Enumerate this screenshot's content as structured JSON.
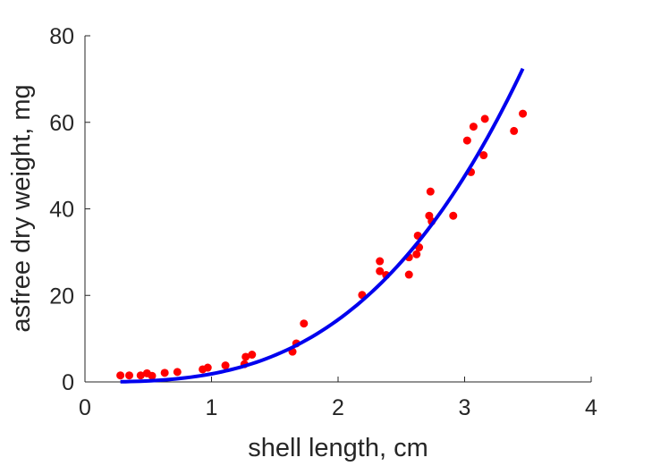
{
  "chart_data": {
    "type": "scatter",
    "title": "",
    "xlabel": "shell length, cm",
    "ylabel": "asfree dry weight, mg",
    "xlim": [
      0,
      4
    ],
    "ylim": [
      0,
      80
    ],
    "xticks": [
      "0",
      "1",
      "2",
      "3",
      "4"
    ],
    "yticks": [
      "0",
      "20",
      "40",
      "60",
      "80"
    ],
    "grid": false,
    "series": [
      {
        "kind": "scatter",
        "color": "#ff0000",
        "points": [
          [
            0.28,
            1.5
          ],
          [
            0.35,
            1.5
          ],
          [
            0.44,
            1.5
          ],
          [
            0.49,
            2.0
          ],
          [
            0.53,
            1.4
          ],
          [
            0.63,
            2.1
          ],
          [
            0.73,
            2.3
          ],
          [
            0.93,
            2.9
          ],
          [
            0.97,
            3.3
          ],
          [
            1.11,
            3.8
          ],
          [
            1.26,
            4.1
          ],
          [
            1.27,
            5.8
          ],
          [
            1.32,
            6.3
          ],
          [
            1.64,
            7.0
          ],
          [
            1.67,
            8.9
          ],
          [
            1.73,
            13.5
          ],
          [
            2.19,
            20.1
          ],
          [
            2.33,
            27.9
          ],
          [
            2.33,
            25.6
          ],
          [
            2.38,
            24.7
          ],
          [
            2.56,
            28.8
          ],
          [
            2.56,
            24.8
          ],
          [
            2.62,
            29.5
          ],
          [
            2.63,
            33.8
          ],
          [
            2.64,
            31.1
          ],
          [
            2.72,
            38.4
          ],
          [
            2.73,
            44.0
          ],
          [
            2.74,
            37.1
          ],
          [
            2.91,
            38.4
          ],
          [
            3.02,
            55.8
          ],
          [
            3.05,
            48.5
          ],
          [
            3.07,
            59.0
          ],
          [
            3.15,
            52.4
          ],
          [
            3.16,
            60.8
          ],
          [
            3.39,
            58.0
          ],
          [
            3.46,
            62.0
          ]
        ]
      },
      {
        "kind": "line",
        "color": "#0000ee",
        "x_range": [
          0.28,
          3.46
        ],
        "coef": 1.86,
        "exponent": 2.95
      }
    ]
  }
}
